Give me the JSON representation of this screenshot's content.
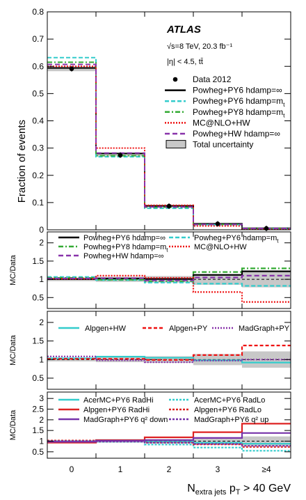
{
  "chart_data": [
    {
      "type": "histogram",
      "panel": "main",
      "ylabel": "Fraction of events",
      "ylim": [
        0,
        0.8
      ],
      "yticks": [
        "0",
        "0.1",
        "0.2",
        "0.3",
        "0.4",
        "0.5",
        "0.6",
        "0.7",
        "0.8"
      ],
      "categories": [
        "0",
        "1",
        "2",
        "3",
        "≥4"
      ],
      "atlas_label": "ATLAS",
      "energy_label": "√s=8 TeV, 20.3 fb⁻¹",
      "selection_label": "|η| < 4.5, tt̄",
      "data": {
        "name": "Data 2012",
        "values": [
          0.591,
          0.274,
          0.087,
          0.022,
          0.005
        ]
      },
      "band_label": "Total uncertainty",
      "series": [
        {
          "name": "Powheg+PY6 hdamp=∞",
          "color": "#000000",
          "dash": "",
          "values": [
            0.594,
            0.28,
            0.088,
            0.022,
            0.006
          ]
        },
        {
          "name": "Powheg+PY6 hdamp=m",
          "sub": "t",
          "color": "#33cccc",
          "dash": "6 3",
          "values": [
            0.632,
            0.268,
            0.079,
            0.019,
            0.004
          ]
        },
        {
          "name": "Powheg+PY8 hdamp=m",
          "sub": "t",
          "color": "#33aa33",
          "dash": "7 3 2 3",
          "values": [
            0.615,
            0.272,
            0.083,
            0.02,
            0.005
          ]
        },
        {
          "name": "MC@NLO+HW",
          "color": "#ee1111",
          "dash": "2 2",
          "values": [
            0.6,
            0.3,
            0.09,
            0.014,
            0.002
          ]
        },
        {
          "name": "Powheg+HW hdamp=∞",
          "color": "#8833aa",
          "dash": "7 4",
          "values": [
            0.607,
            0.282,
            0.084,
            0.02,
            0.005
          ]
        }
      ]
    },
    {
      "type": "ratio",
      "panel": "ratio1",
      "ylabel": "MC/Data",
      "ylim": [
        0.2,
        2.3
      ],
      "yticks": [
        "0.5",
        "1",
        "1.5",
        "2"
      ],
      "band": [
        0.05,
        0.07,
        0.09,
        0.15,
        0.22
      ],
      "series": [
        {
          "name": "Powheg+PY6 hdamp=∞",
          "color": "#000000",
          "dash": "",
          "values": [
            1.005,
            1.02,
            1.01,
            1.12,
            1.22
          ]
        },
        {
          "name": "Powheg+PY6 hdamp=m",
          "sub": "t",
          "color": "#33cccc",
          "dash": "6 3",
          "values": [
            1.065,
            0.98,
            0.91,
            0.88,
            0.82
          ]
        },
        {
          "name": "Powheg+PY8 hdamp=m",
          "sub": "t",
          "color": "#33aa33",
          "dash": "7 3 2 3",
          "values": [
            1.04,
            0.99,
            0.95,
            1.2,
            1.3
          ]
        },
        {
          "name": "MC@NLO+HW",
          "color": "#ee1111",
          "dash": "2 2",
          "values": [
            1.015,
            1.1,
            1.04,
            0.65,
            0.38
          ]
        },
        {
          "name": "Powheg+HW hdamp=∞",
          "color": "#8833aa",
          "dash": "7 4",
          "values": [
            1.025,
            1.03,
            0.97,
            1.05,
            1.1
          ]
        }
      ]
    },
    {
      "type": "ratio",
      "panel": "ratio2",
      "ylabel": "MC/Data",
      "ylim": [
        0.2,
        2.3
      ],
      "yticks": [
        "0.5",
        "1",
        "1.5",
        "2"
      ],
      "band": [
        0.05,
        0.07,
        0.09,
        0.15,
        0.22
      ],
      "series": [
        {
          "name": "Alpgen+HW",
          "color": "#33cccc",
          "dash": "",
          "values": [
            1.035,
            1.08,
            1.05,
            0.98,
            0.92
          ]
        },
        {
          "name": "Alpgen+PY",
          "color": "#ee1111",
          "dash": "5 3",
          "values": [
            1.02,
            1.02,
            0.99,
            1.12,
            1.38
          ]
        },
        {
          "name": "MadGraph+PY",
          "color": "#8833aa",
          "dash": "2 2",
          "values": [
            1.085,
            0.98,
            0.93,
            0.97,
            1.0
          ]
        }
      ]
    },
    {
      "type": "ratio",
      "panel": "ratio3",
      "ylabel": "MC/Data",
      "ylim": [
        0.2,
        3.3
      ],
      "yticks": [
        "0.5",
        "1",
        "1.5",
        "2",
        "2.5",
        "3"
      ],
      "xlabel": "N",
      "xlabel_sub": "extra jets",
      "xlabel_tail": " p",
      "xlabel_tail_sub": "T",
      "xlabel_end": " > 40 GeV",
      "band": [
        0.05,
        0.07,
        0.09,
        0.15,
        0.22
      ],
      "series": [
        {
          "name": "AcerMC+PY6 RadHi",
          "color": "#33cccc",
          "dash": "",
          "values": [
            0.99,
            1.05,
            0.97,
            0.92,
            0.88
          ]
        },
        {
          "name": "AcerMC+PY6 RadLo",
          "color": "#33cccc",
          "dash": "3 2",
          "values": [
            1.02,
            0.97,
            0.84,
            0.7,
            0.55
          ]
        },
        {
          "name": "Alpgen+PY6 RadHi",
          "color": "#dd2222",
          "dash": "",
          "values": [
            0.93,
            1.05,
            1.18,
            1.42,
            1.82
          ]
        },
        {
          "name": "Alpgen+PY6 RadLo",
          "color": "#dd2222",
          "dash": "3 2",
          "values": [
            1.03,
            1.0,
            0.93,
            0.85,
            0.73
          ]
        },
        {
          "name": "MadGraph+PY6 q² down",
          "color": "#7733aa",
          "dash": "",
          "values": [
            0.97,
            1.02,
            1.05,
            1.15,
            1.38
          ]
        },
        {
          "name": "MadGraph+PY6 q² up",
          "color": "#7733aa",
          "dash": "3 2",
          "values": [
            1.0,
            0.98,
            0.93,
            0.87,
            0.78
          ]
        }
      ]
    }
  ]
}
